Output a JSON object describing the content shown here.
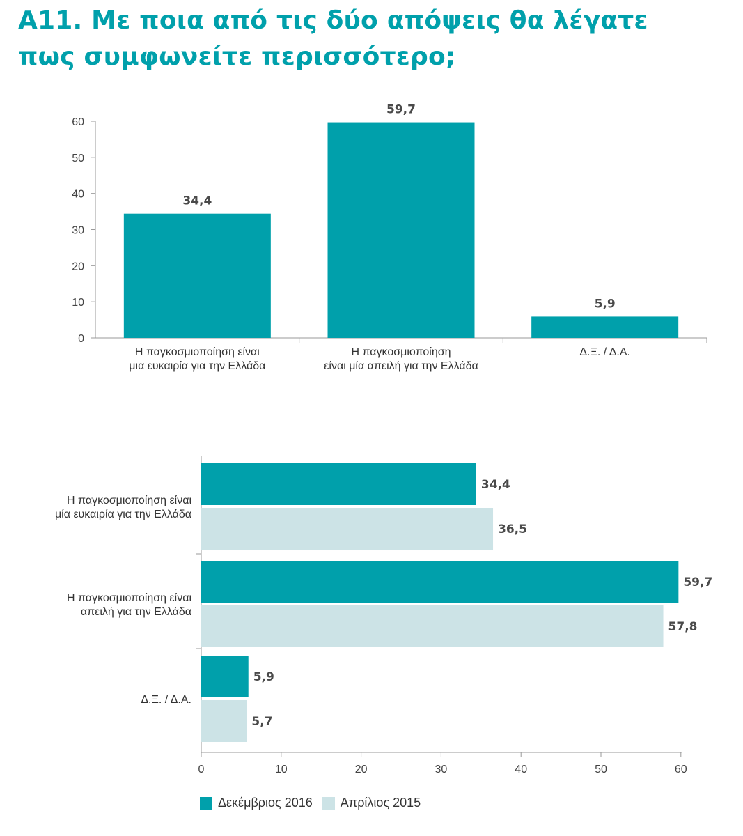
{
  "title": {
    "line1": "Α11. Με ποια από τις δύο απόψεις θα λέγατε",
    "line2": "πως συμφωνείτε περισσότερο;"
  },
  "colors": {
    "primary": "#00a0ab",
    "secondary": "#cce3e6",
    "axis": "#999999"
  },
  "chart_data": [
    {
      "type": "bar",
      "orientation": "vertical",
      "categories": [
        [
          "Η παγκοσμιοποίηση είναι",
          "μια ευκαιρία για την Ελλάδα"
        ],
        [
          "Η παγκοσμιοποίηση",
          "είναι μία απειλή για την Ελλάδα"
        ],
        [
          "Δ.Ξ. / Δ.Α."
        ]
      ],
      "values": [
        34.4,
        59.7,
        5.9
      ],
      "value_labels": [
        "34,4",
        "59,7",
        "5,9"
      ],
      "ylim": [
        0,
        60
      ],
      "yticks": [
        0,
        10,
        20,
        30,
        40,
        50,
        60
      ],
      "grid": false,
      "legend": "none"
    },
    {
      "type": "bar",
      "orientation": "horizontal",
      "categories": [
        [
          "Η παγκοσμιοποίηση είναι",
          "μία ευκαιρία για την Ελλάδα"
        ],
        [
          "Η παγκοσμιοποίηση είναι",
          "απειλή για την Ελλάδα"
        ],
        [
          "Δ.Ξ. / Δ.Α."
        ]
      ],
      "series": [
        {
          "name": "Δεκέμβριος 2016",
          "values": [
            34.4,
            59.7,
            5.9
          ],
          "value_labels": [
            "34,4",
            "59,7",
            "5,9"
          ]
        },
        {
          "name": "Απρίλιος 2015",
          "values": [
            36.5,
            57.8,
            5.7
          ],
          "value_labels": [
            "36,5",
            "57,8",
            "5,7"
          ]
        }
      ],
      "xlim": [
        0,
        60
      ],
      "xticks": [
        0,
        10,
        20,
        30,
        40,
        50,
        60
      ],
      "grid": false,
      "legend": "bottom-left"
    }
  ]
}
